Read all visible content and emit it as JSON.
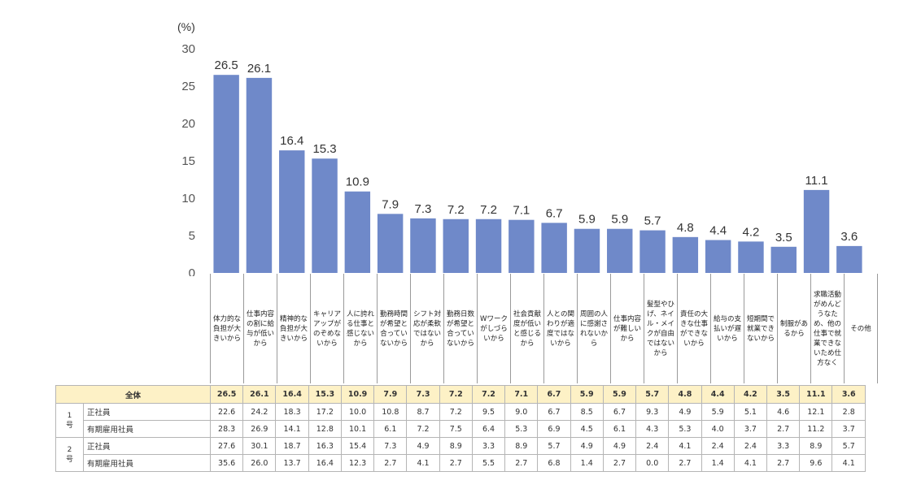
{
  "chart_data": {
    "type": "bar",
    "unit_label": "(%)",
    "ylim": [
      0,
      30
    ],
    "yticks": [
      0,
      5,
      10,
      15,
      20,
      25,
      30
    ],
    "categories": [
      "体力的な負担が大きいから",
      "仕事内容の割に給与が低いから",
      "精神的な負担が大きいから",
      "キャリアアップがのぞめないから",
      "人に誇れる仕事と感じないから",
      "勤務時間が希望と合っていないから",
      "シフト対応が柔軟ではないから",
      "勤務日数が希望と合っていないから",
      "Wワークがしづらいから",
      "社会貢献度が低いと感じるから",
      "人との関わりが適度ではないから",
      "周囲の人に感謝されないから",
      "仕事内容が難しいから",
      "髪型やひげ、ネイル・メイクが自由ではないから",
      "責任の大きな仕事ができないから",
      "給与の支払いが遅いから",
      "短期間で就業できないから",
      "制服があるから",
      "求職活動がめんどうなため、他の仕事で就業できないため仕方なく",
      "その他"
    ],
    "values": [
      26.5,
      26.1,
      16.4,
      15.3,
      10.9,
      7.9,
      7.3,
      7.2,
      7.2,
      7.1,
      6.7,
      5.9,
      5.9,
      5.7,
      4.8,
      4.4,
      4.2,
      3.5,
      11.1,
      3.6
    ],
    "value_labels": [
      "26.5",
      "26.1",
      "16.4",
      "15.3",
      "10.9",
      "7.9",
      "7.3",
      "7.2",
      "7.2",
      "7.1",
      "6.7",
      "5.9",
      "5.9",
      "5.7",
      "4.8",
      "4.4",
      "4.2",
      "3.5",
      "11.1",
      "3.6"
    ],
    "bar_color": "#6f89c9",
    "grid": false
  },
  "table": {
    "total_label": "全体",
    "total": [
      "26.5",
      "26.1",
      "16.4",
      "15.3",
      "10.9",
      "7.9",
      "7.3",
      "7.2",
      "7.2",
      "7.1",
      "6.7",
      "5.9",
      "5.9",
      "5.7",
      "4.8",
      "4.4",
      "4.2",
      "3.5",
      "11.1",
      "3.6"
    ],
    "groups": [
      {
        "label": "1\n号",
        "rows": [
          {
            "label": "正社員",
            "values": [
              "22.6",
              "24.2",
              "18.3",
              "17.2",
              "10.0",
              "10.8",
              "8.7",
              "7.2",
              "9.5",
              "9.0",
              "6.7",
              "8.5",
              "6.7",
              "9.3",
              "4.9",
              "5.9",
              "5.1",
              "4.6",
              "12.1",
              "2.8"
            ]
          },
          {
            "label": "有期雇用社員",
            "values": [
              "28.3",
              "26.9",
              "14.1",
              "12.8",
              "10.1",
              "6.1",
              "7.2",
              "7.5",
              "6.4",
              "5.3",
              "6.9",
              "4.5",
              "6.1",
              "4.3",
              "5.3",
              "4.0",
              "3.7",
              "2.7",
              "11.2",
              "3.7"
            ]
          }
        ]
      },
      {
        "label": "2\n号",
        "rows": [
          {
            "label": "正社員",
            "values": [
              "27.6",
              "30.1",
              "18.7",
              "16.3",
              "15.4",
              "7.3",
              "4.9",
              "8.9",
              "3.3",
              "8.9",
              "5.7",
              "4.9",
              "4.9",
              "2.4",
              "4.1",
              "2.4",
              "2.4",
              "3.3",
              "8.9",
              "5.7"
            ]
          },
          {
            "label": "有期雇用社員",
            "values": [
              "35.6",
              "26.0",
              "13.7",
              "16.4",
              "12.3",
              "2.7",
              "4.1",
              "2.7",
              "5.5",
              "2.7",
              "6.8",
              "1.4",
              "2.7",
              "0.0",
              "2.7",
              "1.4",
              "4.1",
              "2.7",
              "9.6",
              "4.1"
            ]
          }
        ]
      }
    ]
  }
}
